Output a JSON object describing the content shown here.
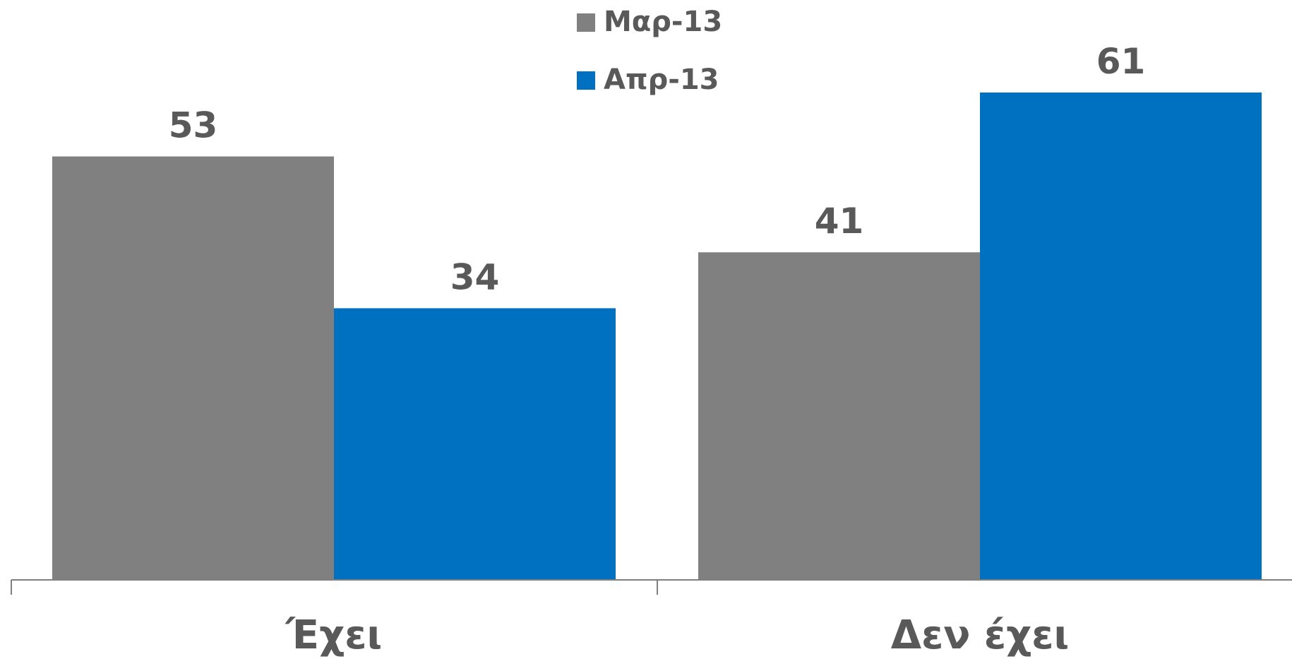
{
  "chart_data": {
    "type": "bar",
    "categories": [
      "Έχει",
      "Δεν έχει"
    ],
    "series": [
      {
        "name": "Μαρ-13",
        "values": [
          53,
          41
        ],
        "color": "#808080"
      },
      {
        "name": "Απρ-13",
        "values": [
          34,
          61
        ],
        "color": "#0070C0"
      }
    ],
    "title": "",
    "xlabel": "",
    "ylabel": "",
    "ylim": [
      0,
      61
    ],
    "grid": false,
    "legend_position": "top-center",
    "data_labels": true
  }
}
